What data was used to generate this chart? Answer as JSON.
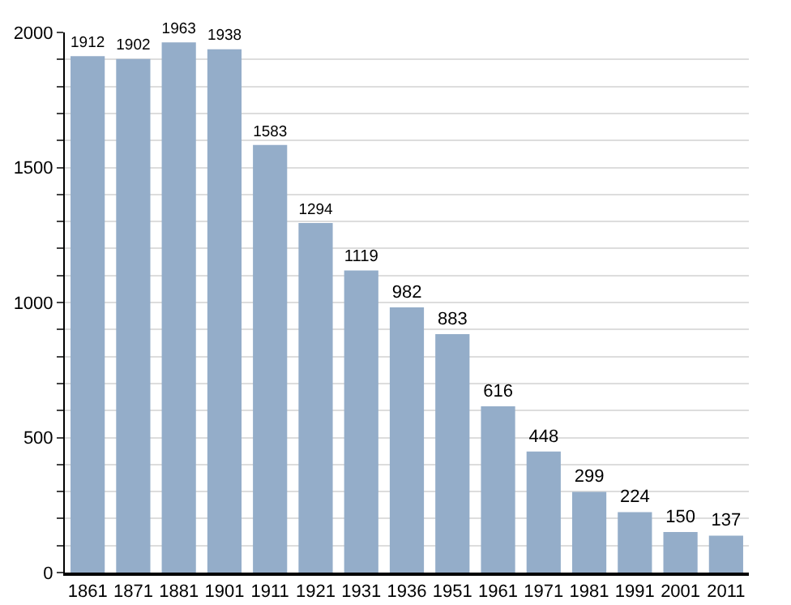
{
  "chart_data": {
    "type": "bar",
    "categories": [
      "1861",
      "1871",
      "1881",
      "1901",
      "1911",
      "1921",
      "1931",
      "1936",
      "1951",
      "1961",
      "1971",
      "1981",
      "1991",
      "2001",
      "2011"
    ],
    "values": [
      1912,
      1902,
      1963,
      1938,
      1583,
      1294,
      1119,
      982,
      883,
      616,
      448,
      299,
      224,
      150,
      137
    ],
    "color": "#94adc9",
    "ylim": [
      0,
      2000
    ],
    "yticks": [
      0,
      {
        "value": 100,
        "label": null
      },
      {
        "value": 200,
        "label": null
      },
      {
        "value": 300,
        "label": null
      },
      {
        "value": 400,
        "label": null
      },
      500,
      {
        "value": 600,
        "label": null
      },
      {
        "value": 700,
        "label": null
      },
      {
        "value": 800,
        "label": null
      },
      {
        "value": 900,
        "label": null
      },
      1000,
      {
        "value": 1100,
        "label": null
      },
      {
        "value": 1200,
        "label": null
      },
      {
        "value": 1300,
        "label": null
      },
      {
        "value": 1400,
        "label": null
      },
      1500,
      {
        "value": 1600,
        "label": null
      },
      {
        "value": 1700,
        "label": null
      },
      {
        "value": 1800,
        "label": null
      },
      {
        "value": 1900,
        "label": null
      },
      2000
    ],
    "grid": "y",
    "data_labels": true
  }
}
